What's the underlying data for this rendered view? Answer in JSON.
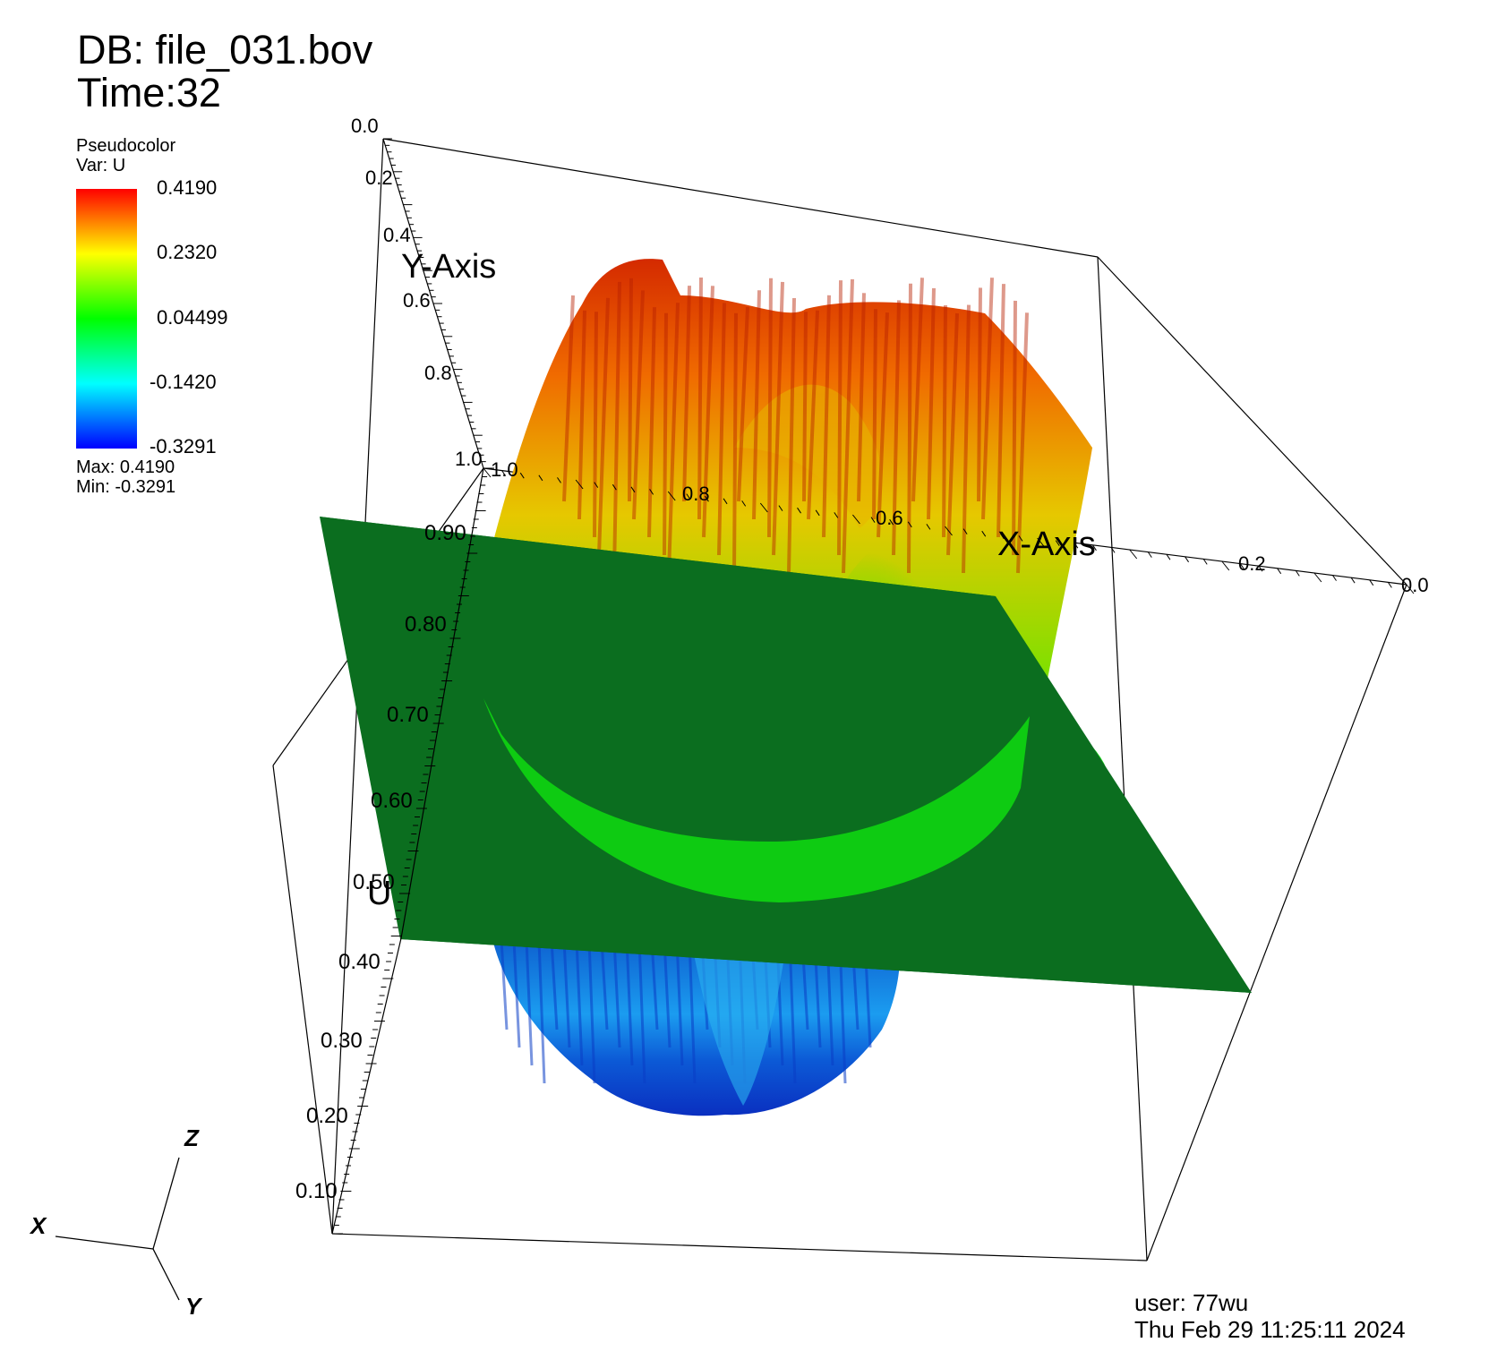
{
  "header": {
    "database": "DB: file_031.bov",
    "time": "Time:32"
  },
  "legend": {
    "plot_type": "Pseudocolor",
    "variable": "Var: U",
    "tick_labels": [
      "0.4190",
      "0.2320",
      "0.04499",
      "-0.1420",
      "-0.3291"
    ],
    "max_text": "Max:  0.4190",
    "min_text": "Min: -0.3291",
    "colormap": [
      "#ff0000",
      "#ffff00",
      "#00ff00",
      "#00ffff",
      "#0000ff"
    ]
  },
  "chart_data": {
    "type": "surface",
    "title": "",
    "variable": "U",
    "value_range": [
      -0.3291,
      0.419
    ],
    "x_axis": {
      "label": "X-Axis",
      "range": [
        0,
        1
      ],
      "tick_labels": [
        "1.0",
        "0.8",
        "0.6",
        "0.2",
        "0.0"
      ]
    },
    "y_axis": {
      "label": "Y-Axis",
      "range": [
        0,
        1
      ],
      "tick_labels": [
        "0.0",
        "0.2",
        "0.4",
        "0.6",
        "0.8",
        "1.0"
      ]
    },
    "z_axis": {
      "label": "U",
      "range": [
        0.1,
        0.9
      ],
      "tick_labels": [
        "0.90",
        "0.80",
        "0.70",
        "0.60",
        "0.50",
        "0.40",
        "0.30",
        "0.20",
        "0.10"
      ]
    },
    "baseline_plane_color": "#0b6e1f",
    "bounding_box": true
  },
  "triad": {
    "x": "X",
    "y": "Y",
    "z": "Z"
  },
  "footer": {
    "user": "user: 77wu",
    "date": "Thu Feb 29 11:25:11 2024"
  }
}
